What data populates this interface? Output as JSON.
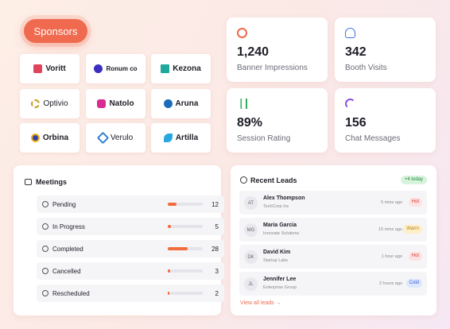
{
  "sponsors": {
    "button": "Sponsors",
    "logos": [
      "Voritt",
      "Ronum co",
      "Kezona",
      "Optivio",
      "Natolo",
      "Aruna",
      "Orbina",
      "Verulo",
      "Artilla"
    ]
  },
  "stats": [
    {
      "value": "1,240",
      "label": "Banner Impressions"
    },
    {
      "value": "342",
      "label": "Booth Visits"
    },
    {
      "value": "89%",
      "label": "Session Rating"
    },
    {
      "value": "156",
      "label": "Chat Messages"
    }
  ],
  "meetings": {
    "title": "Meetings",
    "rows": [
      {
        "label": "Pending",
        "count": 12
      },
      {
        "label": "In Progress",
        "count": 5
      },
      {
        "label": "Completed",
        "count": 28
      },
      {
        "label": "Cancelled",
        "count": 3
      },
      {
        "label": "Rescheduled",
        "count": 2
      }
    ]
  },
  "leads": {
    "title": "Recent Leads",
    "badge": "+4 today",
    "rows": [
      {
        "initials": "AT",
        "name": "Alex Thompson",
        "company": "TechCorp Inc",
        "time": "5 mins ago",
        "status": "Hot"
      },
      {
        "initials": "MG",
        "name": "Maria Garcia",
        "company": "Innovate Solutions",
        "time": "15 mins ago",
        "status": "Warm"
      },
      {
        "initials": "DK",
        "name": "David Kim",
        "company": "Startup Labs",
        "time": "1 hour ago",
        "status": "Hot"
      },
      {
        "initials": "JL",
        "name": "Jennifer Lee",
        "company": "Enterprise Group",
        "time": "2 hours ago",
        "status": "Cold"
      }
    ],
    "link": "View all leads →"
  }
}
